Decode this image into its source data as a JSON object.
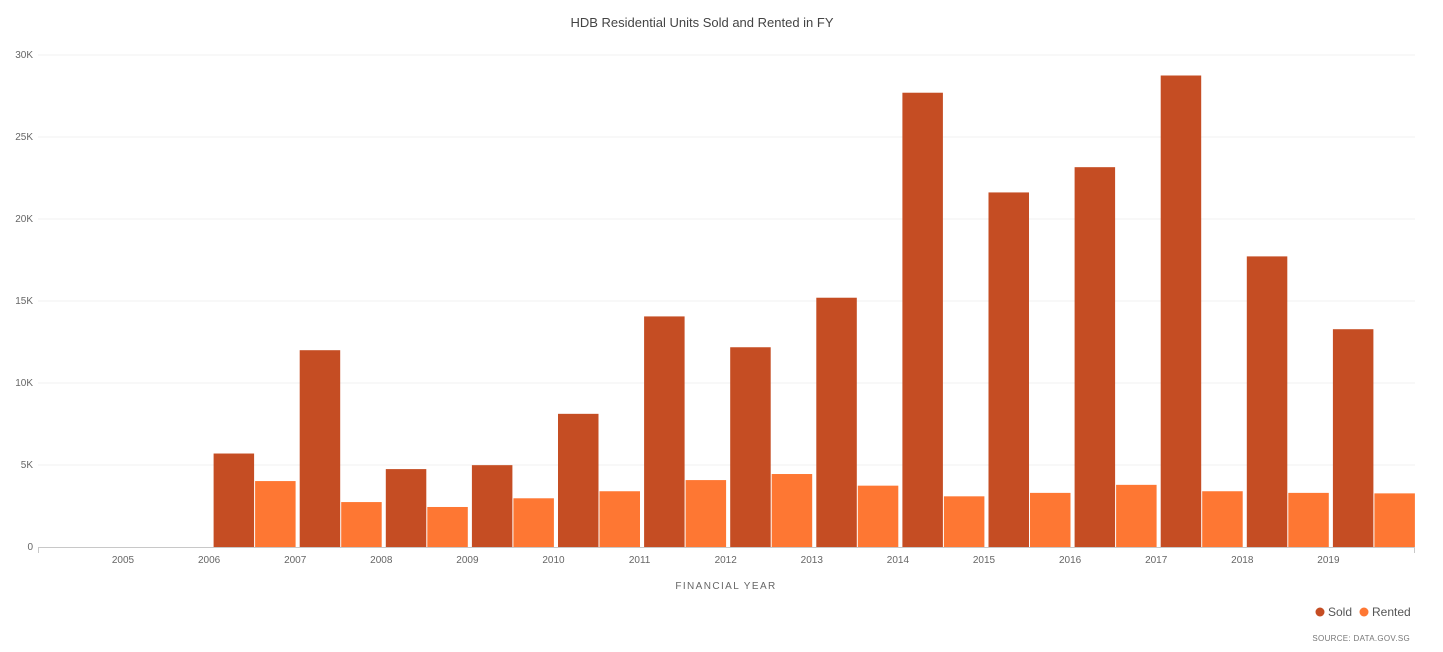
{
  "chart_data": {
    "type": "bar",
    "title": "HDB Residential Units Sold and Rented in FY",
    "xlabel": "FINANCIAL YEAR",
    "ylabel": "",
    "source": "SOURCE: DATA.GOV.SG",
    "categories": [
      "2005",
      "2006",
      "2007",
      "2008",
      "2009",
      "2010",
      "2011",
      "2012",
      "2013",
      "2014",
      "2015",
      "2016",
      "2017",
      "2018",
      "2019"
    ],
    "y_ticks": [
      {
        "value": 0,
        "label": "0"
      },
      {
        "value": 5000,
        "label": "5K"
      },
      {
        "value": 10000,
        "label": "10K"
      },
      {
        "value": 15000,
        "label": "15K"
      },
      {
        "value": 20000,
        "label": "20K"
      },
      {
        "value": 25000,
        "label": "25K"
      },
      {
        "value": 30000,
        "label": "30K"
      }
    ],
    "ylim": [
      0,
      30000
    ],
    "grid": true,
    "legend_position": "bottom-right",
    "series": [
      {
        "name": "Sold",
        "color": "#c54d23",
        "values": [
          0,
          5700,
          12000,
          4750,
          4990,
          8120,
          14060,
          12180,
          15200,
          27700,
          21620,
          23160,
          28750,
          17720,
          13280
        ]
      },
      {
        "name": "Rented",
        "color": "#fe7733",
        "values": [
          0,
          4020,
          2740,
          2440,
          2970,
          3400,
          4080,
          4450,
          3740,
          3090,
          3300,
          3790,
          3400,
          3300,
          3270
        ]
      }
    ]
  }
}
